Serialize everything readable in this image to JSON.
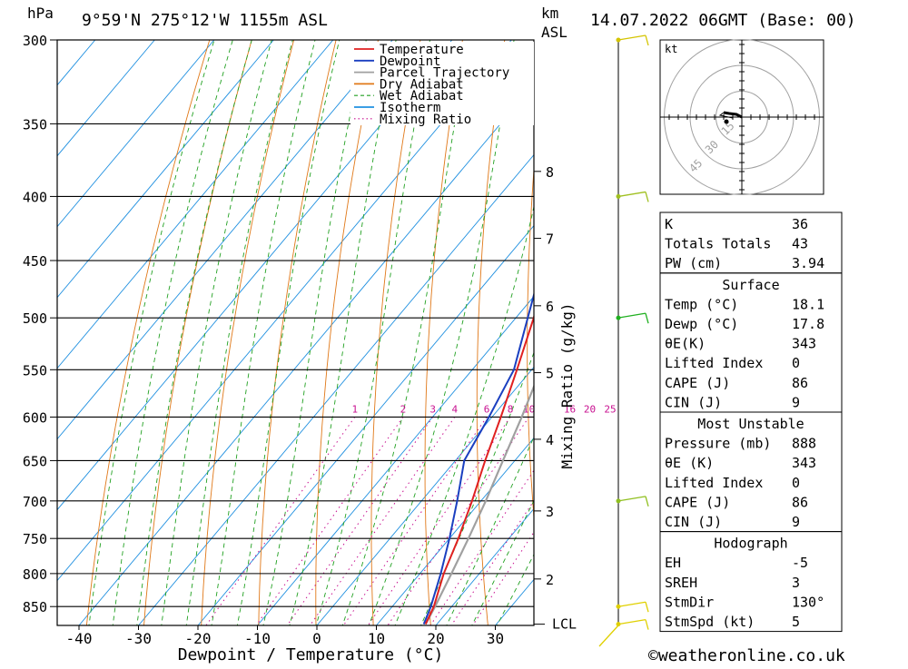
{
  "header": {
    "pressure_unit": "hPa",
    "location": "9°59'N  275°12'W  1155m  ASL",
    "km_label": "km",
    "asl_label": "ASL",
    "datetime": "14.07.2022  06GMT  (Base: 00)"
  },
  "chart_data": {
    "type": "line",
    "title": "",
    "xlabel": "Dewpoint / Temperature (°C)",
    "ylabel": "hPa",
    "y2label": "Mixing Ratio (g/kg)",
    "xlim": [
      -44,
      37
    ],
    "ylim": [
      880,
      300
    ],
    "skew": true,
    "y_scale": "log",
    "x_ticks": [
      -40,
      -30,
      -20,
      -10,
      0,
      10,
      20,
      30
    ],
    "pressure_ticks": [
      300,
      350,
      400,
      450,
      500,
      550,
      600,
      650,
      700,
      750,
      800,
      850
    ],
    "km_ticks": [
      {
        "km": 8,
        "p": 382
      },
      {
        "km": 7,
        "p": 432
      },
      {
        "km": 6,
        "p": 489
      },
      {
        "km": 5,
        "p": 553
      },
      {
        "km": 4,
        "p": 625
      },
      {
        "km": 3,
        "p": 713
      },
      {
        "km": 2,
        "p": 808
      }
    ],
    "lcl_label": "LCL",
    "lcl_pressure": 878,
    "mixing_ratio_labels": [
      "1",
      "2",
      "3",
      "4",
      "6",
      "8",
      "10",
      "16",
      "20",
      "25"
    ],
    "mixing_ratio_values": [
      1,
      2,
      3,
      4,
      6,
      8,
      10,
      16,
      20,
      25
    ],
    "series": [
      {
        "name": "Temperature",
        "color": "#e02020",
        "points": [
          [
            878,
            18.1
          ],
          [
            850,
            17
          ],
          [
            800,
            14
          ],
          [
            750,
            11.5
          ],
          [
            700,
            8.5
          ],
          [
            650,
            5
          ],
          [
            600,
            1.5
          ],
          [
            550,
            -2.5
          ],
          [
            500,
            -7
          ],
          [
            450,
            -12.5
          ],
          [
            400,
            -19
          ],
          [
            350,
            -28
          ],
          [
            300,
            -38.5
          ]
        ]
      },
      {
        "name": "Dewpoint",
        "color": "#1a3fc0",
        "points": [
          [
            878,
            17.8
          ],
          [
            850,
            16.5
          ],
          [
            800,
            13.5
          ],
          [
            750,
            10
          ],
          [
            700,
            6
          ],
          [
            650,
            1.5
          ],
          [
            600,
            -0.5
          ],
          [
            550,
            -3
          ],
          [
            500,
            -8
          ],
          [
            450,
            -13.5
          ],
          [
            400,
            -20
          ],
          [
            350,
            -29
          ],
          [
            300,
            -42
          ]
        ]
      },
      {
        "name": "Parcel Trajectory",
        "color": "#a0a0a0",
        "points": [
          [
            878,
            18.1
          ],
          [
            850,
            17.2
          ],
          [
            800,
            15.3
          ],
          [
            750,
            13.2
          ],
          [
            700,
            10.8
          ],
          [
            650,
            8
          ],
          [
            600,
            5
          ],
          [
            550,
            1.5
          ],
          [
            500,
            -2.5
          ],
          [
            450,
            -7.5
          ],
          [
            400,
            -14
          ],
          [
            350,
            -22
          ],
          [
            300,
            -32
          ]
        ]
      }
    ],
    "legend": [
      {
        "label": "Temperature",
        "color": "#e02020",
        "style": "solid"
      },
      {
        "label": "Dewpoint",
        "color": "#1a3fc0",
        "style": "solid"
      },
      {
        "label": "Parcel Trajectory",
        "color": "#a0a0a0",
        "style": "solid"
      },
      {
        "label": "Dry Adiabat",
        "color": "#e07818",
        "style": "solid"
      },
      {
        "label": "Wet Adiabat",
        "color": "#20a020",
        "style": "dashed"
      },
      {
        "label": "Isotherm",
        "color": "#2090e0",
        "style": "solid"
      },
      {
        "label": "Mixing Ratio",
        "color": "#c81090",
        "style": "dotted"
      }
    ],
    "legend_position": "top-right"
  },
  "wind_barbs": [
    {
      "p": 300,
      "color": "#d4c400"
    },
    {
      "p": 400,
      "color": "#a0c020"
    },
    {
      "p": 500,
      "color": "#20b020"
    },
    {
      "p": 700,
      "color": "#90c020"
    },
    {
      "p": 850,
      "color": "#e0d000"
    },
    {
      "p": 878,
      "color": "#e0d000"
    }
  ],
  "hodograph": {
    "unit_label": "kt",
    "ring_labels": [
      "15",
      "30",
      "45"
    ]
  },
  "indices": {
    "main": [
      {
        "label": "K",
        "value": "36"
      },
      {
        "label": "Totals Totals",
        "value": "43"
      },
      {
        "label": "PW (cm)",
        "value": "3.94"
      }
    ],
    "surface": {
      "title": "Surface",
      "rows": [
        {
          "label": "Temp (°C)",
          "value": "18.1"
        },
        {
          "label": "Dewp (°C)",
          "value": "17.8"
        },
        {
          "label": "θE(K)",
          "value": "343"
        },
        {
          "label": "Lifted Index",
          "value": "0"
        },
        {
          "label": "CAPE (J)",
          "value": "86"
        },
        {
          "label": "CIN (J)",
          "value": "9"
        }
      ]
    },
    "most_unstable": {
      "title": "Most Unstable",
      "rows": [
        {
          "label": "Pressure (mb)",
          "value": "888"
        },
        {
          "label": "θE (K)",
          "value": "343"
        },
        {
          "label": "Lifted Index",
          "value": "0"
        },
        {
          "label": "CAPE (J)",
          "value": "86"
        },
        {
          "label": "CIN (J)",
          "value": "9"
        }
      ]
    },
    "hodograph": {
      "title": "Hodograph",
      "rows": [
        {
          "label": "EH",
          "value": "-5"
        },
        {
          "label": "SREH",
          "value": "3"
        },
        {
          "label": "StmDir",
          "value": "130°"
        },
        {
          "label": "StmSpd (kt)",
          "value": "5"
        }
      ]
    }
  },
  "footer": {
    "copyright": "©weatheronline.co.uk"
  }
}
